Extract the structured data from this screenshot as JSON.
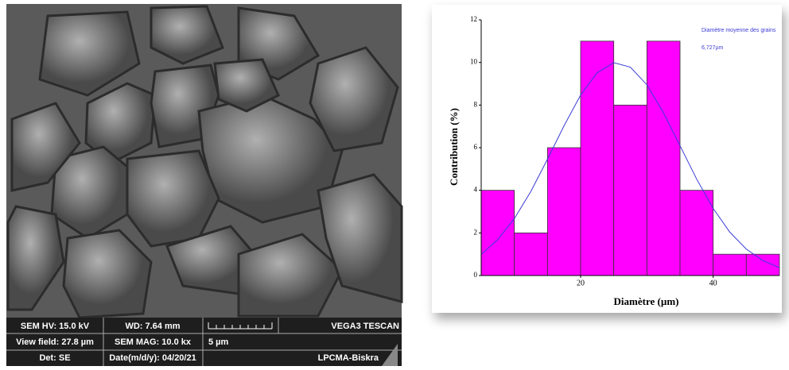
{
  "sem_info": {
    "rows": [
      [
        "SEM HV: 15.0 kV",
        "WD: 7.64 mm",
        "VEGA3 TESCAN"
      ],
      [
        "View field: 27.8 µm",
        "SEM MAG: 10.0 kx",
        "5 µm"
      ],
      [
        "Det: SE",
        "Date(m/d/y): 04/20/21",
        "LPCMA-Biskra"
      ]
    ]
  },
  "chart_data": {
    "type": "histogram",
    "xlabel": "Diamètre (µm)",
    "ylabel": "Contribution (%)",
    "annotation": [
      "Diamètre moyenne des grains",
      "6,727µm"
    ],
    "bins": [
      5,
      10,
      15,
      20,
      25,
      30,
      35,
      40,
      45,
      50
    ],
    "values": [
      4,
      2,
      6,
      11,
      8,
      11,
      4,
      1,
      1
    ],
    "color": "#ff00ff",
    "curve": {
      "color": "#3b3bd6",
      "x": [
        5,
        7.5,
        10,
        12.5,
        15,
        17.5,
        20,
        22.5,
        25,
        27.5,
        30,
        32.5,
        35,
        37.5,
        40,
        42.5,
        45,
        47.5,
        50
      ],
      "values": [
        0.99,
        1.69,
        2.67,
        3.95,
        5.46,
        7.03,
        8.47,
        9.52,
        9.99,
        9.78,
        8.95,
        7.64,
        6.09,
        4.53,
        3.15,
        2.04,
        1.24,
        0.7,
        0.37
      ]
    },
    "xlim": [
      5,
      50
    ],
    "ylim": [
      0,
      12
    ],
    "xticks": [
      20,
      40
    ],
    "yticks": [
      0,
      2,
      4,
      6,
      8,
      10,
      12
    ]
  }
}
